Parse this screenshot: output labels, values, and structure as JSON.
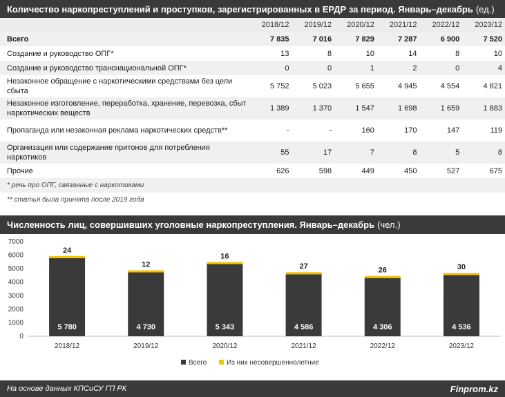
{
  "table": {
    "title": "Количество наркопреступлений и проступков, зарегистрированных в ЕРДР за период. Январь–декабрь",
    "unit": "(ед.)",
    "years": [
      "2018/12",
      "2019/12",
      "2020/12",
      "2021/12",
      "2022/12",
      "2023/12"
    ],
    "rows": [
      {
        "name": "Всего",
        "values": [
          "7 835",
          "7 016",
          "7 829",
          "7 287",
          "6 900",
          "7 520"
        ]
      },
      {
        "name": "Создание и руководство ОПГ*",
        "values": [
          "13",
          "8",
          "10",
          "14",
          "8",
          "10"
        ]
      },
      {
        "name": "Создание и руководство транснациональной ОПГ*",
        "values": [
          "0",
          "0",
          "1",
          "2",
          "0",
          "4"
        ]
      },
      {
        "name": "Незаконное обращение с наркотическими средствами без цели сбыта",
        "values": [
          "5 752",
          "5 023",
          "5 655",
          "4 945",
          "4 554",
          "4 821"
        ]
      },
      {
        "name": "Незаконное изготовление, переработка, хранение, перевозка, сбыт наркотических веществ",
        "values": [
          "1 389",
          "1 370",
          "1 547",
          "1 698",
          "1 659",
          "1 883"
        ]
      },
      {
        "name": "Пропаганда или незаконная реклама наркотических средств**",
        "values": [
          "-",
          "-",
          "160",
          "170",
          "147",
          "119"
        ]
      },
      {
        "name": "Организация или содержание притонов для потребления наркотиков",
        "values": [
          "55",
          "17",
          "7",
          "8",
          "5",
          "8"
        ]
      },
      {
        "name": "Прочие",
        "values": [
          "626",
          "598",
          "449",
          "450",
          "527",
          "675"
        ]
      }
    ],
    "notes": [
      "* речь про ОПГ, связанные с наркотиками",
      "** статья была принята после 2019 года"
    ]
  },
  "chart": {
    "title": "Численность лиц, совершивших уголовные наркопреступления. Январь–декабрь",
    "unit": "(чел.)"
  },
  "chart_data": {
    "type": "bar",
    "stacked": true,
    "categories": [
      "2018/12",
      "2019/12",
      "2020/12",
      "2021/12",
      "2022/12",
      "2023/12"
    ],
    "series": [
      {
        "name": "Всего",
        "values": [
          5780,
          4730,
          5343,
          4586,
          4306,
          4536
        ],
        "labels": [
          "5 780",
          "4 730",
          "5 343",
          "4 586",
          "4 306",
          "4 536"
        ],
        "color": "#3a3a3a"
      },
      {
        "name": "Из них несовершеннолетние",
        "values": [
          24,
          12,
          16,
          27,
          26,
          30
        ],
        "labels": [
          "24",
          "12",
          "16",
          "27",
          "26",
          "30"
        ],
        "color": "#f5c400"
      }
    ],
    "yticks": [
      "0",
      "1000",
      "2000",
      "3000",
      "4000",
      "5000",
      "6000",
      "7000"
    ],
    "ylim": [
      0,
      7000
    ],
    "grid": false,
    "legend": "bottom"
  },
  "footer": {
    "source": "На основе данных КПСиСУ ГП РК",
    "brand": "Finprom.kz"
  }
}
